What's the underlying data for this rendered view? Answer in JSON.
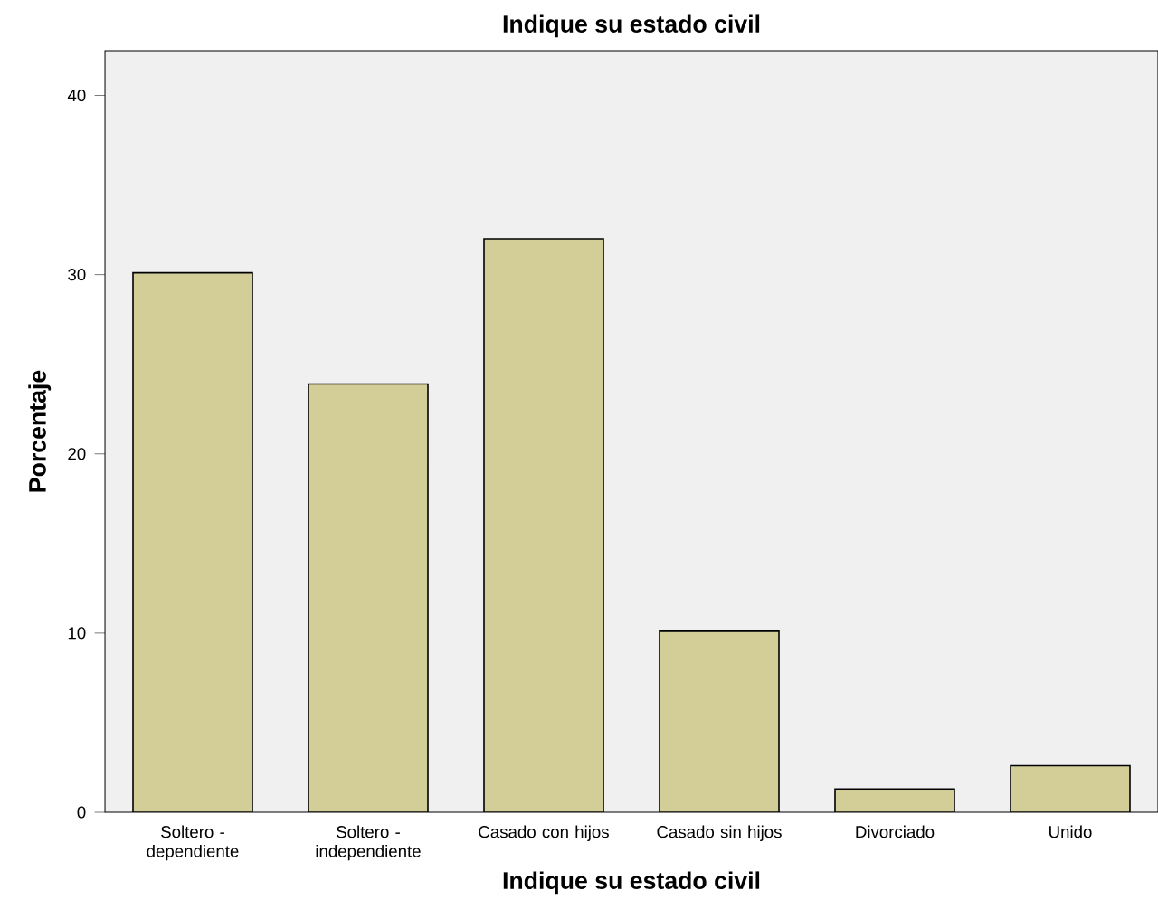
{
  "chart_data": {
    "type": "bar",
    "title": "Indique su estado civil",
    "xlabel": "Indique su estado civil",
    "ylabel": "Porcentaje",
    "categories": [
      "Soltero - dependiente",
      "Soltero - independiente",
      "Casado con hijos",
      "Casado sin hijos",
      "Divorciado",
      "Unido"
    ],
    "values": [
      30.1,
      23.9,
      32.0,
      10.1,
      1.3,
      2.6
    ],
    "color": "#d3ce97",
    "ylim": [
      0,
      42.5
    ],
    "yticks": [
      0,
      10,
      20,
      30,
      40
    ],
    "grid": false
  }
}
